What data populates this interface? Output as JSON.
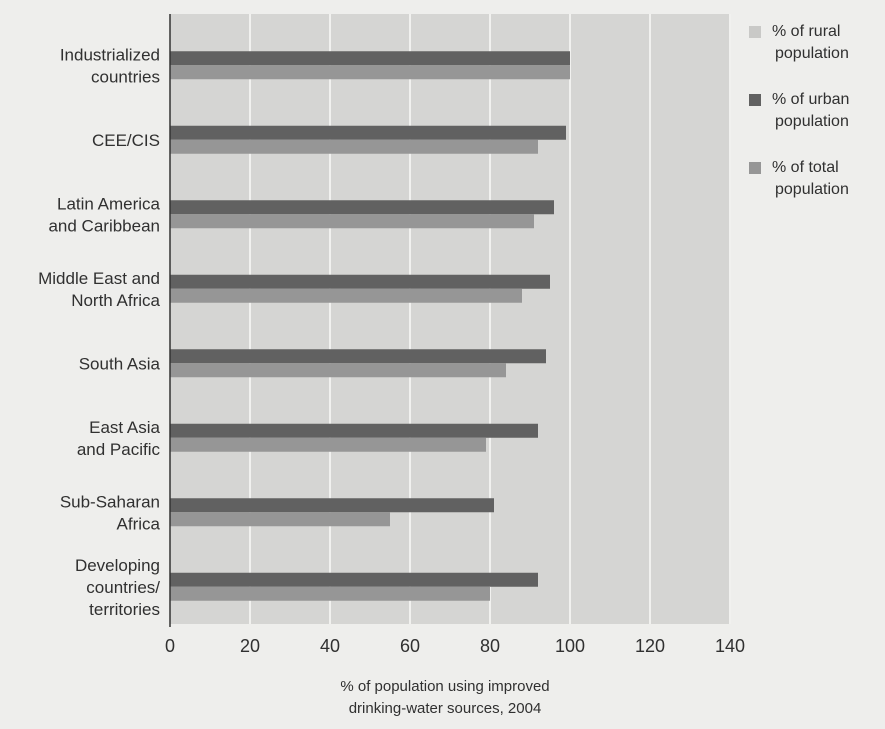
{
  "colors": {
    "plot_background": "#d5d5d3",
    "page_background": "#eeeeec",
    "rural": "#c9c9c7",
    "urban": "#616161",
    "total": "#969696",
    "gridline": "#f1f1ef",
    "axis": "#333333"
  },
  "chart_data": {
    "type": "bar",
    "orientation": "horizontal",
    "title": "",
    "xlabel": [
      "% of population using improved",
      "drinking-water sources, 2004"
    ],
    "ylabel": "",
    "xlim": [
      0,
      140
    ],
    "xticks": [
      0,
      20,
      40,
      60,
      80,
      100,
      120,
      140
    ],
    "grid": true,
    "legend_position": "right",
    "categories": [
      [
        "Industrialized",
        "countries"
      ],
      [
        "CEE/CIS"
      ],
      [
        "Latin America",
        "and Caribbean"
      ],
      [
        "Middle East and",
        "North Africa"
      ],
      [
        "South Asia"
      ],
      [
        "East Asia",
        "and Pacific"
      ],
      [
        "Sub-Saharan",
        "Africa"
      ],
      [
        "Developing",
        "countries/",
        "territories"
      ]
    ],
    "series": [
      {
        "name": [
          "% of rural",
          "population"
        ],
        "color": "#c9c9c7",
        "values": [
          null,
          null,
          null,
          null,
          null,
          null,
          null,
          null
        ]
      },
      {
        "name": [
          "% of urban",
          "population"
        ],
        "color": "#616161",
        "values": [
          100,
          99,
          96,
          95,
          94,
          92,
          81,
          92
        ]
      },
      {
        "name": [
          "% of total",
          "population"
        ],
        "color": "#969696",
        "values": [
          100,
          92,
          91,
          88,
          84,
          79,
          55,
          80
        ]
      }
    ]
  }
}
